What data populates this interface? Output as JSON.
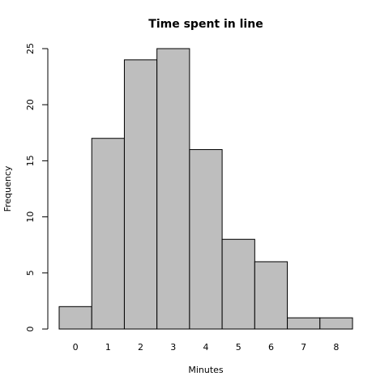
{
  "chart_data": {
    "type": "bar",
    "title": "Time spent in line",
    "x_label": "Minutes",
    "y_label": "Frequency",
    "categories": [
      "0",
      "1",
      "2",
      "3",
      "4",
      "5",
      "6",
      "7",
      "8"
    ],
    "values": [
      2,
      17,
      24,
      25,
      16,
      8,
      6,
      1,
      1
    ],
    "color": "#bebebe",
    "ylim": [
      0,
      25
    ],
    "yticks": [
      0,
      5,
      10,
      15,
      20,
      25
    ],
    "grid": false
  }
}
